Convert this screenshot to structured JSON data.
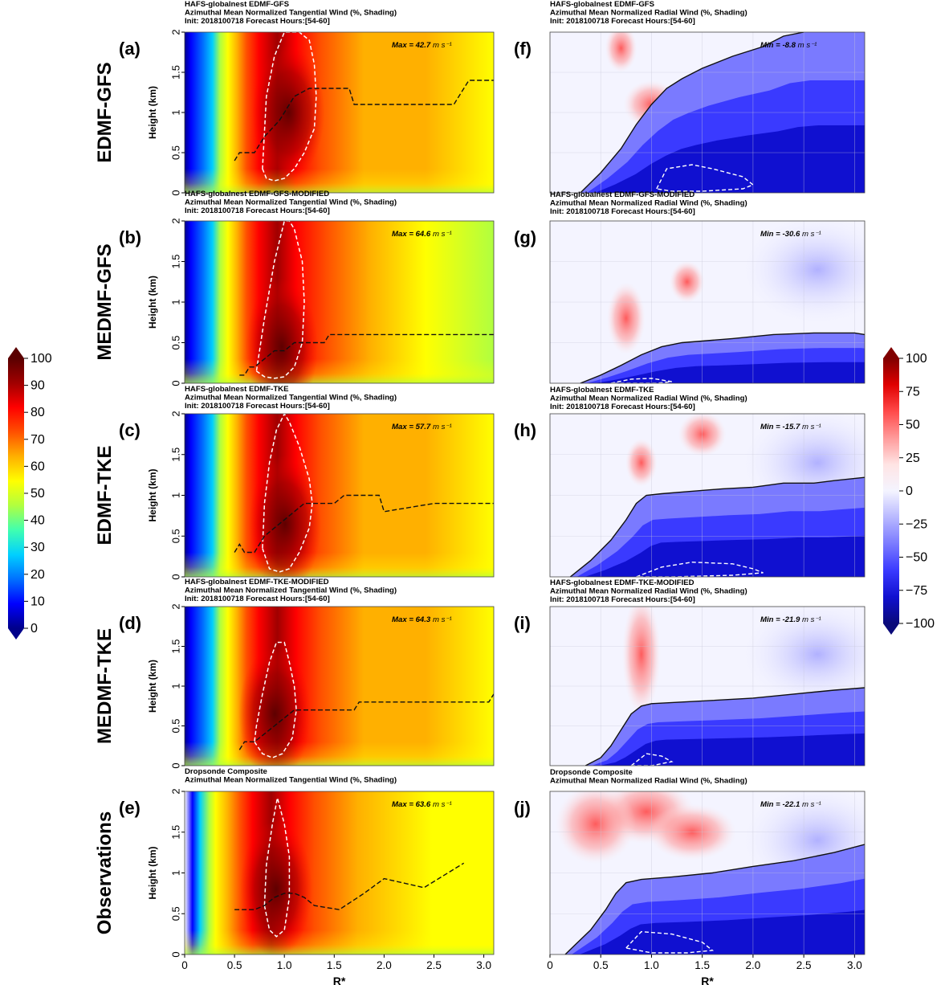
{
  "colors": {
    "tangential_cmap": [
      "#00008b",
      "#0000ff",
      "#0070ff",
      "#00d0ff",
      "#40ffb0",
      "#b0ff40",
      "#ffff00",
      "#ffb000",
      "#ff5000",
      "#ff0000",
      "#a00000",
      "#5a0000"
    ],
    "radial_cmap": [
      "#0a0a7a",
      "#1010d0",
      "#3a3aff",
      "#7a7aff",
      "#b8b8ff",
      "#f4f4ff",
      "#ffe4e4",
      "#ff9a9a",
      "#ff4a4a",
      "#e00000",
      "#800000"
    ]
  },
  "left_colorbar": {
    "ticks": [
      "100",
      "90",
      "80",
      "70",
      "60",
      "50",
      "40",
      "30",
      "20",
      "10",
      "0"
    ]
  },
  "right_colorbar": {
    "ticks": [
      "100",
      "75",
      "50",
      "25",
      "0",
      "−25",
      "−50",
      "−75",
      "−100"
    ]
  },
  "left_x_ticks": [
    "0",
    "0.5",
    "1.0",
    "1.5",
    "2.0",
    "2.5",
    "3.0"
  ],
  "right_x_ticks": [
    "0",
    "0.5",
    "1.0",
    "1.5",
    "2.0",
    "2.5",
    "3.0"
  ],
  "y_ticks": [
    "0",
    "0.5",
    "1",
    "1.5",
    "2"
  ],
  "xlabel": "R*",
  "ylabel": "Height (km)",
  "row_labels": [
    "EDMF-GFS",
    "MEDMF-GFS",
    "EDMF-TKE",
    "MEDMF-TKE",
    "Observations"
  ],
  "chart_data": [
    {
      "type": "heatmap",
      "panel": "(a)",
      "title_lines": [
        "HAFS-globalnest EDMF-GFS",
        "Azimuthal Mean Normalized Tangential Wind (%, Shading)",
        "Init: 2018100718 Forecast Hours:[54-60]"
      ],
      "annotation": "Max = 42.7",
      "unit": "m s⁻¹",
      "xlim": [
        0,
        3.1
      ],
      "ylim": [
        0,
        2
      ],
      "rmw_line": {
        "x": [
          0.5,
          0.55,
          0.7,
          0.8,
          0.95,
          1.05,
          1.1,
          1.25,
          1.5,
          1.65,
          1.7,
          2.0,
          2.5,
          2.7,
          2.75,
          2.85,
          3.1
        ],
        "y": [
          0.4,
          0.5,
          0.5,
          0.7,
          0.9,
          1.1,
          1.2,
          1.3,
          1.3,
          1.3,
          1.1,
          1.1,
          1.1,
          1.1,
          1.2,
          1.4,
          1.4
        ]
      },
      "contour90": {
        "x": [
          0.78,
          0.82,
          0.9,
          1.0,
          1.1,
          1.2,
          1.3,
          1.32,
          1.3,
          1.25,
          1.15,
          1.0,
          0.9,
          0.82,
          0.78
        ],
        "y": [
          0.3,
          0.18,
          0.15,
          0.18,
          0.3,
          0.5,
          0.8,
          1.2,
          1.6,
          1.9,
          2.0,
          2.0,
          1.7,
          1.2,
          0.3
        ]
      }
    },
    {
      "type": "heatmap",
      "panel": "(b)",
      "title_lines": [
        "HAFS-globalnest EDMF-GFS-MODIFIED",
        "Azimuthal Mean Normalized Tangential Wind (%, Shading)",
        "Init: 2018100718 Forecast Hours:[54-60]"
      ],
      "annotation": "Max = 64.6",
      "unit": "m s⁻¹",
      "xlim": [
        0,
        3.1
      ],
      "ylim": [
        0,
        2
      ],
      "rmw_line": {
        "x": [
          0.55,
          0.6,
          0.65,
          0.7,
          0.8,
          0.9,
          1.0,
          1.1,
          1.2,
          1.3,
          1.4,
          1.45,
          3.1
        ],
        "y": [
          0.1,
          0.1,
          0.2,
          0.2,
          0.3,
          0.4,
          0.4,
          0.5,
          0.5,
          0.5,
          0.5,
          0.6,
          0.6
        ]
      },
      "contour90": {
        "x": [
          0.72,
          0.8,
          0.9,
          1.0,
          1.1,
          1.18,
          1.2,
          1.18,
          1.1,
          1.05,
          1.0,
          0.9,
          0.8,
          0.72
        ],
        "y": [
          0.15,
          0.08,
          0.06,
          0.08,
          0.2,
          0.5,
          1.0,
          1.5,
          1.9,
          2.0,
          2.0,
          1.5,
          0.8,
          0.15
        ]
      }
    },
    {
      "type": "heatmap",
      "panel": "(c)",
      "title_lines": [
        "HAFS-globalnest EDMF-TKE",
        "Azimuthal Mean Normalized Tangential Wind (%, Shading)",
        "Init: 2018100718 Forecast Hours:[54-60]"
      ],
      "annotation": "Max = 57.7",
      "unit": "m s⁻¹",
      "xlim": [
        0,
        3.1
      ],
      "ylim": [
        0,
        2
      ],
      "rmw_line": {
        "x": [
          0.5,
          0.55,
          0.6,
          0.7,
          0.8,
          0.9,
          1.0,
          1.1,
          1.2,
          1.3,
          1.5,
          1.6,
          1.95,
          2.0,
          2.5,
          3.1
        ],
        "y": [
          0.3,
          0.4,
          0.3,
          0.3,
          0.5,
          0.6,
          0.7,
          0.8,
          0.9,
          0.9,
          0.9,
          1.0,
          1.0,
          0.8,
          0.9,
          0.9
        ]
      },
      "contour90": {
        "x": [
          0.78,
          0.85,
          0.95,
          1.05,
          1.15,
          1.25,
          1.28,
          1.25,
          1.15,
          1.05,
          1.0,
          0.92,
          0.85,
          0.8,
          0.78
        ],
        "y": [
          0.35,
          0.1,
          0.06,
          0.1,
          0.3,
          0.6,
          0.9,
          1.2,
          1.6,
          1.9,
          2.0,
          1.8,
          1.4,
          0.9,
          0.35
        ]
      }
    },
    {
      "type": "heatmap",
      "panel": "(d)",
      "title_lines": [
        "HAFS-globalnest EDMF-TKE-MODIFIED",
        "Azimuthal Mean Normalized Tangential Wind (%, Shading)",
        "Init: 2018100718 Forecast Hours:[54-60]"
      ],
      "annotation": "Max = 64.3",
      "unit": "m s⁻¹",
      "xlim": [
        0,
        3.1
      ],
      "ylim": [
        0,
        2
      ],
      "rmw_line": {
        "x": [
          0.55,
          0.6,
          0.7,
          0.8,
          0.9,
          1.0,
          1.1,
          1.2,
          1.5,
          1.7,
          1.75,
          2.2,
          2.6,
          3.05,
          3.1
        ],
        "y": [
          0.2,
          0.3,
          0.3,
          0.4,
          0.5,
          0.6,
          0.7,
          0.7,
          0.7,
          0.7,
          0.8,
          0.8,
          0.8,
          0.8,
          0.9
        ]
      },
      "contour90": {
        "x": [
          0.7,
          0.78,
          0.88,
          0.98,
          1.08,
          1.12,
          1.1,
          1.05,
          1.0,
          0.92,
          0.85,
          0.78,
          0.72,
          0.7
        ],
        "y": [
          0.3,
          0.15,
          0.1,
          0.15,
          0.35,
          0.7,
          1.0,
          1.3,
          1.55,
          1.55,
          1.3,
          0.9,
          0.5,
          0.3
        ]
      }
    },
    {
      "type": "heatmap",
      "panel": "(e)",
      "title_lines": [
        "Dropsonde Composite",
        "Azimuthal Mean Normalized Tangential Wind (%, Shading)"
      ],
      "annotation": "Max = 63.6",
      "unit": "m s⁻¹",
      "xlim": [
        0,
        3.1
      ],
      "ylim": [
        0,
        2
      ],
      "rmw_line": {
        "x": [
          0.5,
          0.7,
          0.8,
          0.9,
          1.0,
          1.1,
          1.2,
          1.3,
          1.55,
          1.8,
          2.0,
          2.4,
          2.8
        ],
        "y": [
          0.55,
          0.55,
          0.6,
          0.7,
          0.75,
          0.75,
          0.7,
          0.6,
          0.55,
          0.75,
          0.93,
          0.82,
          1.12
        ]
      },
      "contour90": {
        "x": [
          0.8,
          0.85,
          0.92,
          1.0,
          1.05,
          1.05,
          1.0,
          0.93,
          0.88,
          0.82,
          0.8
        ],
        "y": [
          0.6,
          0.3,
          0.22,
          0.3,
          0.7,
          1.2,
          1.6,
          1.92,
          1.6,
          1.1,
          0.6
        ]
      }
    },
    {
      "type": "heatmap",
      "panel": "(f)",
      "title_lines": [
        "HAFS-globalnest EDMF-GFS",
        "Azimuthal Mean Normalized Radial Wind (%, Shading)",
        "Init: 2018100718 Forecast Hours:[54-60]"
      ],
      "annotation": "Min = -8.8",
      "unit": "m s⁻¹",
      "xlim": [
        0,
        3.1
      ],
      "ylim": [
        0,
        2
      ],
      "zero_line": {
        "x": [
          0.3,
          0.5,
          0.7,
          0.85,
          1.0,
          1.15,
          1.3,
          1.5,
          1.8,
          2.1,
          2.3,
          2.5
        ],
        "y": [
          0.0,
          0.25,
          0.55,
          0.85,
          1.1,
          1.3,
          1.42,
          1.55,
          1.7,
          1.82,
          1.95,
          2.0
        ]
      },
      "neg_contour": {
        "x": [
          1.05,
          1.15,
          1.4,
          1.6,
          1.9,
          2.0,
          1.9,
          1.5,
          1.2,
          1.05
        ],
        "y": [
          0.05,
          0.3,
          0.35,
          0.3,
          0.2,
          0.1,
          0.05,
          0.02,
          0.02,
          0.05
        ]
      }
    },
    {
      "type": "heatmap",
      "panel": "(g)",
      "title_lines": [
        "HAFS-globalnest EDMF-GFS-MODIFIED",
        "Azimuthal Mean Normalized Radial Wind (%, Shading)",
        "Init: 2018100718 Forecast Hours:[54-60]"
      ],
      "annotation": "Min = -30.6",
      "unit": "m s⁻¹",
      "xlim": [
        0,
        3.1
      ],
      "ylim": [
        0,
        2
      ],
      "zero_line": {
        "x": [
          0.3,
          0.5,
          0.7,
          0.9,
          1.1,
          1.3,
          1.5,
          1.8,
          2.2,
          2.6,
          3.0,
          3.1
        ],
        "y": [
          0.0,
          0.1,
          0.22,
          0.35,
          0.45,
          0.5,
          0.52,
          0.55,
          0.6,
          0.62,
          0.62,
          0.6
        ]
      },
      "neg_contour": {
        "x": [
          0.6,
          0.8,
          1.0,
          1.2,
          1.05,
          0.8,
          0.6
        ],
        "y": [
          0.0,
          0.05,
          0.06,
          0.02,
          0.0,
          0.0,
          0.0
        ]
      }
    },
    {
      "type": "heatmap",
      "panel": "(h)",
      "title_lines": [
        "HAFS-globalnest EDMF-TKE",
        "Azimuthal Mean Normalized Radial Wind (%, Shading)",
        "Init: 2018100718 Forecast Hours:[54-60]"
      ],
      "annotation": "Min = -15.7",
      "unit": "m s⁻¹",
      "xlim": [
        0,
        3.1
      ],
      "ylim": [
        0,
        2
      ],
      "zero_line": {
        "x": [
          0.2,
          0.4,
          0.6,
          0.75,
          0.85,
          0.95,
          1.1,
          1.4,
          1.7,
          2.0,
          2.3,
          2.6,
          2.8,
          3.1
        ],
        "y": [
          0.0,
          0.2,
          0.45,
          0.7,
          0.9,
          1.0,
          1.02,
          1.05,
          1.08,
          1.1,
          1.15,
          1.15,
          1.18,
          1.22
        ]
      },
      "neg_contour": {
        "x": [
          0.85,
          1.1,
          1.4,
          1.8,
          2.0,
          2.1,
          1.8,
          1.2,
          0.85
        ],
        "y": [
          0.0,
          0.12,
          0.18,
          0.16,
          0.1,
          0.05,
          0.02,
          0.0,
          0.0
        ]
      }
    },
    {
      "type": "heatmap",
      "panel": "(i)",
      "title_lines": [
        "HAFS-globalnest EDMF-TKE-MODIFIED",
        "Azimuthal Mean Normalized Radial Wind (%, Shading)",
        "Init: 2018100718 Forecast Hours:[54-60]"
      ],
      "annotation": "Min = -21.9",
      "unit": "m s⁻¹",
      "xlim": [
        0,
        3.1
      ],
      "ylim": [
        0,
        2
      ],
      "zero_line": {
        "x": [
          0.35,
          0.5,
          0.6,
          0.7,
          0.8,
          0.9,
          1.0,
          1.3,
          1.6,
          2.0,
          2.4,
          2.8,
          3.1
        ],
        "y": [
          0.0,
          0.1,
          0.25,
          0.45,
          0.65,
          0.75,
          0.78,
          0.8,
          0.82,
          0.85,
          0.9,
          0.95,
          0.98
        ]
      },
      "neg_contour": {
        "x": [
          0.8,
          0.95,
          1.1,
          1.2,
          1.0,
          0.8
        ],
        "y": [
          0.0,
          0.15,
          0.12,
          0.05,
          0.0,
          0.0
        ]
      }
    },
    {
      "type": "heatmap",
      "panel": "(j)",
      "title_lines": [
        "Dropsonde Composite",
        "Azimuthal Mean Normalized Radial Wind (%, Shading)"
      ],
      "annotation": "Min = -22.1",
      "unit": "m s⁻¹",
      "xlim": [
        0,
        3.1
      ],
      "ylim": [
        0,
        2
      ],
      "zero_line": {
        "x": [
          0.15,
          0.25,
          0.4,
          0.55,
          0.65,
          0.75,
          0.9,
          1.2,
          1.6,
          2.0,
          2.4,
          2.8,
          3.1
        ],
        "y": [
          0.0,
          0.12,
          0.3,
          0.55,
          0.75,
          0.88,
          0.92,
          0.95,
          1.0,
          1.08,
          1.15,
          1.25,
          1.35
        ]
      },
      "neg_contour": {
        "x": [
          0.75,
          0.9,
          1.2,
          1.5,
          1.6,
          1.35,
          1.0,
          0.75
        ],
        "y": [
          0.08,
          0.28,
          0.25,
          0.15,
          0.05,
          0.02,
          0.02,
          0.08
        ]
      }
    }
  ]
}
